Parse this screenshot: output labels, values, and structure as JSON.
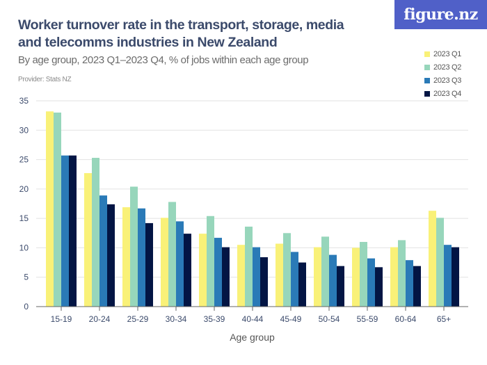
{
  "header": {
    "title": "Worker turnover rate in the transport, storage, media and telecomms industries in New Zealand",
    "subtitle": "By age group, 2023 Q1–2023 Q4, % of jobs within each age group",
    "provider": "Provider: Stats NZ",
    "logo_text": "figure.nz"
  },
  "chart_data": {
    "type": "bar",
    "title": "Worker turnover rate in the transport, storage, media and telecomms industries in New Zealand",
    "xlabel": "Age group",
    "ylabel": "",
    "ylim": [
      0,
      35
    ],
    "yticks": [
      0,
      5,
      10,
      15,
      20,
      25,
      30,
      35
    ],
    "grid": true,
    "legend_position": "top-right",
    "categories": [
      "15-19",
      "20-24",
      "25-29",
      "30-34",
      "35-39",
      "40-44",
      "45-49",
      "50-54",
      "55-59",
      "60-64",
      "65+"
    ],
    "series": [
      {
        "name": "2023 Q1",
        "color": "#f9f178",
        "values": [
          33.2,
          22.7,
          16.9,
          15.1,
          12.4,
          10.5,
          10.7,
          10.1,
          10.0,
          10.1,
          16.3
        ]
      },
      {
        "name": "2023 Q2",
        "color": "#97d6bb",
        "values": [
          33.0,
          25.3,
          20.4,
          17.8,
          15.4,
          13.6,
          12.5,
          11.9,
          11.0,
          11.3,
          15.1
        ]
      },
      {
        "name": "2023 Q3",
        "color": "#2a7ab7",
        "values": [
          25.7,
          18.9,
          16.7,
          14.5,
          11.7,
          10.1,
          9.3,
          8.8,
          8.2,
          7.9,
          10.5
        ]
      },
      {
        "name": "2023 Q4",
        "color": "#031544",
        "values": [
          25.7,
          17.4,
          14.2,
          12.4,
          10.1,
          8.4,
          7.5,
          6.9,
          6.7,
          6.9,
          10.1
        ]
      }
    ]
  }
}
